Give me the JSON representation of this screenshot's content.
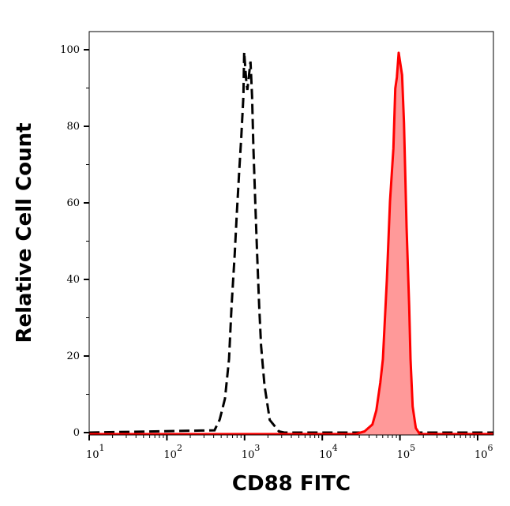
{
  "chart_data": {
    "type": "area",
    "title": "",
    "xlabel": "CD88 FITC",
    "ylabel": "Relative Cell Count",
    "x_scale": "log",
    "xlim": [
      10,
      1600000
    ],
    "ylim": [
      -0.6,
      105
    ],
    "x_ticks": [
      {
        "value": 10,
        "base": "10",
        "exp": "1"
      },
      {
        "value": 100,
        "base": "10",
        "exp": "2"
      },
      {
        "value": 1000,
        "base": "10",
        "exp": "3"
      },
      {
        "value": 10000,
        "base": "10",
        "exp": "4"
      },
      {
        "value": 100000,
        "base": "10",
        "exp": "5"
      },
      {
        "value": 1000000,
        "base": "10",
        "exp": "6"
      }
    ],
    "y_ticks": [
      "0",
      "20",
      "40",
      "60",
      "80",
      "100"
    ],
    "grid": false,
    "series": [
      {
        "style": "dashed-line",
        "color": "#000000",
        "x": [
          10,
          410,
          479,
          560,
          630,
          679,
          746,
          794,
          847,
          908,
          966,
          989,
          1045,
          1086,
          1191,
          1250,
          1300,
          1371,
          1452,
          1542,
          1629,
          1803,
          2109,
          2767,
          3236,
          1600000
        ],
        "y": [
          0,
          0.6,
          3.4,
          8.9,
          19.2,
          33.0,
          46.6,
          57.0,
          67.2,
          77.5,
          87.8,
          99.4,
          92.4,
          89.5,
          96.9,
          87.8,
          74.2,
          60.4,
          46.6,
          33.0,
          22.7,
          12.4,
          3.3,
          0.3,
          0,
          0
        ]
      },
      {
        "style": "filled-area",
        "color": "#ff0000",
        "fill": "#ff9999",
        "x": [
          10,
          26600,
          35000,
          44200,
          49700,
          55800,
          60300,
          67800,
          74500,
          82400,
          87100,
          91200,
          96400,
          106400,
          112700,
          121600,
          131500,
          136800,
          145900,
          160000,
          179900,
          1600000
        ],
        "y": [
          -0.4,
          -0.4,
          0.3,
          2.1,
          5.8,
          13.0,
          19.2,
          39.8,
          60.4,
          74.2,
          89.9,
          92.8,
          99.2,
          93.4,
          81.0,
          53.6,
          33.0,
          19.2,
          6.8,
          1.2,
          -0.4,
          -0.4
        ]
      }
    ]
  }
}
